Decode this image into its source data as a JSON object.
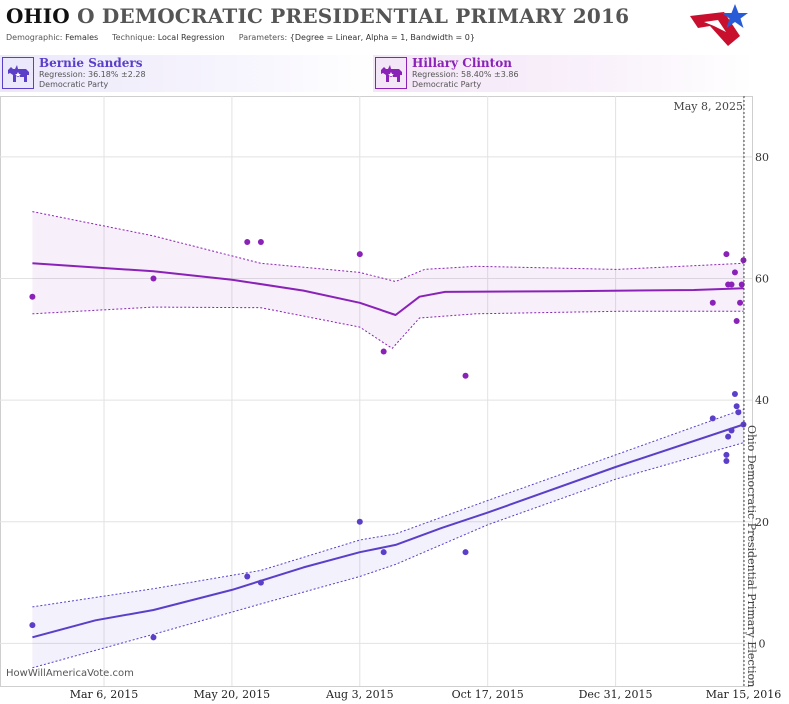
{
  "header": {
    "state": "OHIO",
    "title_rest": "O DEMOCRATIC PRESIDENTIAL PRIMARY 2016",
    "demographic_label": "Demographic:",
    "demographic_value": "Females",
    "technique_label": "Technique:",
    "technique_value": "Local Regression",
    "parameters_label": "Parameters:",
    "parameters_value": "{Degree = Linear, Alpha = 1, Bandwidth = 0}"
  },
  "candidates": [
    {
      "name": "Bernie Sanders",
      "regression": "Regression: 36.18% ±2.28",
      "party": "Democratic Party",
      "color": "#5b3fc9",
      "icon": "donkey-icon"
    },
    {
      "name": "Hillary Clinton",
      "regression": "Regression: 58.40% ±3.86",
      "party": "Democratic Party",
      "color": "#8a22b8",
      "icon": "donkey-icon"
    }
  ],
  "source": "HowWillAmericaVote.com",
  "colors": {
    "sanders": "#5b3fc9",
    "clinton": "#8a22b8",
    "band_sanders": "#efeafc",
    "band_clinton": "#f6eefa",
    "grid": "#e2e2e2",
    "logo_red": "#c8102e",
    "logo_blue": "#2a5bd7"
  },
  "chart_data": {
    "type": "scatter",
    "x_ticks": [
      "Mar 6, 2015",
      "May 20, 2015",
      "Aug 3, 2015",
      "Oct 17, 2015",
      "Dec 31, 2015",
      "Mar 15, 2016"
    ],
    "x_range": [
      "2015-01-04",
      "2016-03-20"
    ],
    "y_ticks": [
      "0",
      "20",
      "40",
      "60",
      "80"
    ],
    "ylim": [
      -7,
      90
    ],
    "grid": true,
    "current_date_label": "May 8, 2025",
    "election_label": "Ohio Democratic Presidential Primary Election",
    "election_date": "2016-03-15",
    "series": [
      {
        "name": "Hillary Clinton",
        "color": "#8a22b8",
        "points": [
          [
            "2015-01-23",
            57
          ],
          [
            "2015-04-04",
            60
          ],
          [
            "2015-05-29",
            66
          ],
          [
            "2015-06-06",
            66
          ],
          [
            "2015-08-03",
            64
          ],
          [
            "2015-08-17",
            48
          ],
          [
            "2015-10-04",
            44
          ],
          [
            "2016-02-26",
            56
          ],
          [
            "2016-03-05",
            64
          ],
          [
            "2016-03-06",
            59
          ],
          [
            "2016-03-08",
            59
          ],
          [
            "2016-03-10",
            61
          ],
          [
            "2016-03-11",
            53
          ],
          [
            "2016-03-13",
            56
          ],
          [
            "2016-03-14",
            59
          ],
          [
            "2016-03-15",
            63
          ]
        ],
        "trend": [
          [
            "2015-01-23",
            62.5
          ],
          [
            "2015-03-01",
            61.8
          ],
          [
            "2015-04-04",
            61.2
          ],
          [
            "2015-05-20",
            59.8
          ],
          [
            "2015-07-01",
            58.0
          ],
          [
            "2015-08-03",
            56.0
          ],
          [
            "2015-08-24",
            54.0
          ],
          [
            "2015-09-07",
            57.0
          ],
          [
            "2015-09-22",
            57.8
          ],
          [
            "2015-12-01",
            57.9
          ],
          [
            "2016-02-15",
            58.1
          ],
          [
            "2016-03-15",
            58.4
          ]
        ],
        "upper": [
          [
            "2015-01-23",
            71
          ],
          [
            "2015-04-04",
            67
          ],
          [
            "2015-06-06",
            62.5
          ],
          [
            "2015-08-03",
            61
          ],
          [
            "2015-08-24",
            59.5
          ],
          [
            "2015-09-10",
            61.5
          ],
          [
            "2015-10-10",
            62
          ],
          [
            "2016-01-01",
            61.5
          ],
          [
            "2016-03-15",
            62.5
          ]
        ],
        "lower": [
          [
            "2015-01-23",
            54.2
          ],
          [
            "2015-04-04",
            55.3
          ],
          [
            "2015-06-06",
            55.2
          ],
          [
            "2015-08-03",
            52
          ],
          [
            "2015-08-22",
            48.5
          ],
          [
            "2015-09-07",
            53.5
          ],
          [
            "2015-10-10",
            54.2
          ],
          [
            "2016-01-01",
            54.6
          ],
          [
            "2016-03-15",
            54.6
          ]
        ]
      },
      {
        "name": "Bernie Sanders",
        "color": "#5b3fc9",
        "points": [
          [
            "2015-01-23",
            3
          ],
          [
            "2015-04-04",
            1
          ],
          [
            "2015-05-29",
            11
          ],
          [
            "2015-06-06",
            10
          ],
          [
            "2015-08-03",
            20
          ],
          [
            "2015-08-17",
            15
          ],
          [
            "2015-10-04",
            15
          ],
          [
            "2016-02-26",
            37
          ],
          [
            "2016-03-05",
            31
          ],
          [
            "2016-03-05",
            30
          ],
          [
            "2016-03-06",
            34
          ],
          [
            "2016-03-08",
            35
          ],
          [
            "2016-03-10",
            41
          ],
          [
            "2016-03-11",
            39
          ],
          [
            "2016-03-12",
            38
          ],
          [
            "2016-03-15",
            36
          ]
        ],
        "trend": [
          [
            "2015-01-23",
            1
          ],
          [
            "2015-03-01",
            3.8
          ],
          [
            "2015-04-04",
            5.5
          ],
          [
            "2015-05-20",
            8.8
          ],
          [
            "2015-07-01",
            12.5
          ],
          [
            "2015-08-03",
            15
          ],
          [
            "2015-08-24",
            16.2
          ],
          [
            "2015-09-20",
            19
          ],
          [
            "2015-10-17",
            21.5
          ],
          [
            "2015-12-31",
            29
          ],
          [
            "2016-03-15",
            36
          ]
        ],
        "upper": [
          [
            "2015-01-23",
            6
          ],
          [
            "2015-04-04",
            9
          ],
          [
            "2015-06-06",
            12
          ],
          [
            "2015-08-03",
            17
          ],
          [
            "2015-08-24",
            18
          ],
          [
            "2015-10-17",
            23.5
          ],
          [
            "2015-12-31",
            31
          ],
          [
            "2016-03-15",
            38.5
          ]
        ],
        "lower": [
          [
            "2015-01-23",
            -4
          ],
          [
            "2015-04-04",
            1.5
          ],
          [
            "2015-06-06",
            6.5
          ],
          [
            "2015-08-03",
            11
          ],
          [
            "2015-08-24",
            13
          ],
          [
            "2015-10-17",
            19.5
          ],
          [
            "2015-12-31",
            27
          ],
          [
            "2016-03-15",
            33
          ]
        ]
      }
    ]
  }
}
